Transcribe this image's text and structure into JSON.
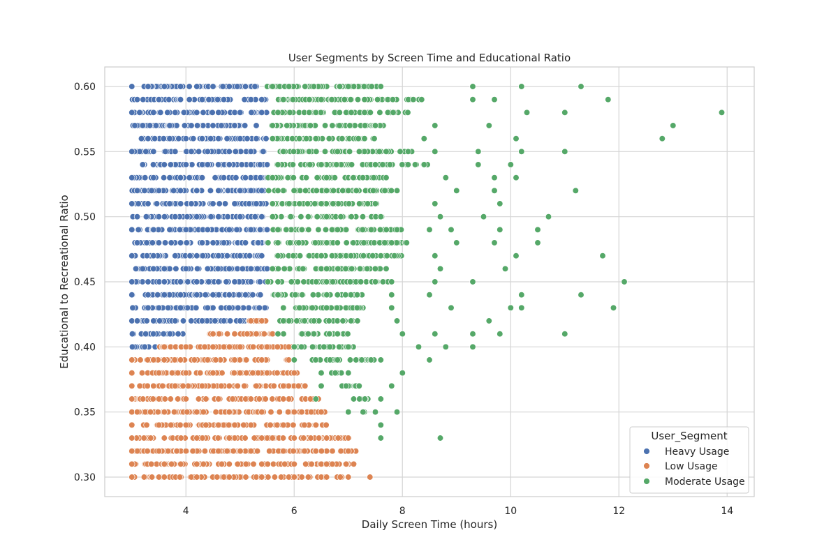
{
  "chart_data": {
    "type": "scatter",
    "title": "User Segments by Screen Time and Educational Ratio",
    "xlabel": "Daily Screen Time (hours)",
    "ylabel": "Educational to Recreational Ratio",
    "xlim": [
      2.5,
      14.5
    ],
    "ylim": [
      0.285,
      0.615
    ],
    "xticks": [
      4,
      6,
      8,
      10,
      12,
      14
    ],
    "yticks": [
      0.3,
      0.35,
      0.4,
      0.45,
      0.5,
      0.55,
      0.6
    ],
    "ytick_labels": [
      "0.30",
      "0.35",
      "0.40",
      "0.45",
      "0.50",
      "0.55",
      "0.60"
    ],
    "grid": true,
    "legend": {
      "title": "User_Segment",
      "placement": "lower-right"
    },
    "series": [
      {
        "name": "Heavy Usage",
        "color": "#4c72b0",
        "x": [
          3.0,
          3.3,
          3.6,
          3.9,
          4.2,
          4.5,
          4.8,
          5.1,
          5.4,
          3.1,
          3.5,
          3.9,
          4.3,
          4.7,
          5.2,
          3.0,
          3.4,
          3.8,
          4.2,
          4.6,
          5.0,
          5.4,
          3.2,
          3.7,
          4.1,
          4.5,
          4.9,
          5.3,
          3.3,
          3.7,
          4.0,
          4.3,
          4.6,
          5.0,
          5.3,
          3.0,
          3.4,
          3.8,
          4.1,
          4.4,
          4.8,
          5.2,
          3.2,
          3.6,
          4.0,
          4.4,
          4.8,
          5.2,
          5.5,
          3.0,
          3.4,
          3.9,
          4.3,
          4.7,
          5.1,
          5.5,
          3.1,
          3.5,
          3.9,
          4.2,
          4.6,
          5.0,
          5.4,
          3.0,
          3.3,
          3.7,
          4.1,
          4.5,
          4.9,
          5.3,
          3.1,
          3.5,
          3.8,
          4.2,
          4.6,
          5.0,
          5.4,
          3.0,
          3.4,
          3.7,
          4.0,
          4.4,
          4.8,
          5.2,
          5.5,
          3.1,
          3.5,
          3.9,
          4.3,
          4.7,
          5.1,
          5.5,
          3.0,
          3.4,
          3.8,
          4.2,
          4.6,
          5.0,
          5.4,
          3.2,
          3.6,
          4.0,
          4.4,
          4.8,
          5.2,
          5.5,
          3.0,
          3.3,
          3.6,
          3.9,
          4.2,
          4.6,
          4.9,
          5.2,
          3.0,
          3.3,
          3.6,
          3.9,
          4.2,
          4.5,
          4.8,
          5.1,
          3.3,
          3.5,
          3.9,
          4.4,
          4.8,
          3.0,
          3.1,
          3.4,
          3.8,
          4.3,
          4.7,
          5.0,
          5.3
        ],
        "y": [
          0.6,
          0.6,
          0.6,
          0.6,
          0.6,
          0.6,
          0.6,
          0.6,
          0.59,
          0.59,
          0.59,
          0.59,
          0.59,
          0.59,
          0.59,
          0.58,
          0.58,
          0.58,
          0.58,
          0.58,
          0.58,
          0.58,
          0.57,
          0.57,
          0.57,
          0.57,
          0.57,
          0.57,
          0.56,
          0.56,
          0.56,
          0.56,
          0.56,
          0.56,
          0.56,
          0.55,
          0.55,
          0.55,
          0.55,
          0.55,
          0.55,
          0.55,
          0.54,
          0.54,
          0.54,
          0.54,
          0.54,
          0.54,
          0.54,
          0.53,
          0.53,
          0.53,
          0.53,
          0.53,
          0.53,
          0.53,
          0.52,
          0.52,
          0.52,
          0.52,
          0.52,
          0.52,
          0.52,
          0.51,
          0.51,
          0.51,
          0.51,
          0.51,
          0.51,
          0.51,
          0.5,
          0.5,
          0.5,
          0.5,
          0.5,
          0.5,
          0.5,
          0.49,
          0.49,
          0.49,
          0.49,
          0.49,
          0.49,
          0.49,
          0.49,
          0.48,
          0.48,
          0.48,
          0.48,
          0.48,
          0.48,
          0.48,
          0.47,
          0.47,
          0.47,
          0.47,
          0.47,
          0.47,
          0.47,
          0.46,
          0.46,
          0.46,
          0.46,
          0.46,
          0.46,
          0.46,
          0.45,
          0.45,
          0.45,
          0.45,
          0.45,
          0.45,
          0.45,
          0.45,
          0.44,
          0.44,
          0.44,
          0.44,
          0.44,
          0.44,
          0.44,
          0.44,
          0.43,
          0.43,
          0.43,
          0.43,
          0.43,
          0.42,
          0.42,
          0.42,
          0.42,
          0.42,
          0.42,
          0.42,
          0.41
        ],
        "bands": [
          [
            0.6,
            3.2,
            5.4
          ],
          [
            0.59,
            3.0,
            5.5
          ],
          [
            0.58,
            3.0,
            5.5
          ],
          [
            0.57,
            3.0,
            5.5
          ],
          [
            0.56,
            3.1,
            5.5
          ],
          [
            0.55,
            3.0,
            5.5
          ],
          [
            0.54,
            3.1,
            5.5
          ],
          [
            0.53,
            3.0,
            5.5
          ],
          [
            0.52,
            3.0,
            5.5
          ],
          [
            0.51,
            3.0,
            5.5
          ],
          [
            0.5,
            3.0,
            5.5
          ],
          [
            0.49,
            3.0,
            5.5
          ],
          [
            0.48,
            3.0,
            5.5
          ],
          [
            0.47,
            3.0,
            5.5
          ],
          [
            0.46,
            3.0,
            5.5
          ],
          [
            0.45,
            3.0,
            5.5
          ],
          [
            0.44,
            3.0,
            5.5
          ],
          [
            0.43,
            3.0,
            5.5
          ],
          [
            0.42,
            3.0,
            5.1
          ],
          [
            0.41,
            3.0,
            4.0
          ],
          [
            0.4,
            3.0,
            3.5
          ]
        ]
      },
      {
        "name": "Low Usage",
        "color": "#dd8452",
        "x": [
          5.2,
          5.4,
          4.5,
          4.9,
          5.3,
          5.6,
          3.6,
          4.0,
          4.5,
          5.0,
          5.5,
          5.9,
          3.0,
          3.4,
          3.9,
          4.4,
          4.9,
          5.4,
          5.9,
          3.0,
          3.5,
          4.0,
          4.5,
          5.0,
          5.5,
          6.0,
          3.0,
          3.4,
          3.8,
          4.3,
          4.8,
          5.3,
          5.8,
          6.2,
          3.0,
          3.5,
          4.0,
          4.6,
          5.2,
          5.8,
          6.3,
          3.1,
          3.6,
          4.2,
          4.8,
          5.4,
          6.0,
          6.5,
          3.0,
          3.5,
          4.0,
          4.6,
          5.2,
          5.8,
          6.4,
          3.0,
          3.6,
          4.2,
          4.8,
          5.4,
          6.0,
          6.6,
          7.0,
          3.0,
          3.5,
          4.0,
          4.6,
          5.2,
          5.8,
          6.4,
          7.0,
          3.0,
          3.6,
          4.2,
          4.8,
          5.4,
          6.0,
          6.6,
          7.1,
          3.0,
          3.5,
          4.1,
          4.7,
          5.3,
          5.9,
          6.5,
          7.0,
          7.4,
          3.0,
          3.6,
          4.2,
          4.8,
          5.4,
          6.0,
          6.6,
          7.4
        ],
        "y": [
          0.42,
          0.42,
          0.41,
          0.41,
          0.41,
          0.41,
          0.4,
          0.4,
          0.4,
          0.4,
          0.4,
          0.4,
          0.39,
          0.39,
          0.39,
          0.39,
          0.39,
          0.39,
          0.39,
          0.38,
          0.38,
          0.38,
          0.38,
          0.38,
          0.38,
          0.38,
          0.37,
          0.37,
          0.37,
          0.37,
          0.37,
          0.37,
          0.37,
          0.37,
          0.36,
          0.36,
          0.36,
          0.36,
          0.36,
          0.36,
          0.36,
          0.35,
          0.35,
          0.35,
          0.35,
          0.35,
          0.35,
          0.35,
          0.34,
          0.34,
          0.34,
          0.34,
          0.34,
          0.34,
          0.34,
          0.33,
          0.33,
          0.33,
          0.33,
          0.33,
          0.33,
          0.33,
          0.33,
          0.32,
          0.32,
          0.32,
          0.32,
          0.32,
          0.32,
          0.32,
          0.32,
          0.31,
          0.31,
          0.31,
          0.31,
          0.31,
          0.31,
          0.31,
          0.31,
          0.3,
          0.3,
          0.3,
          0.3,
          0.3,
          0.3,
          0.3,
          0.3,
          0.3,
          0.3,
          0.3,
          0.3,
          0.3,
          0.3,
          0.3,
          0.3,
          0.3
        ],
        "bands": [
          [
            0.42,
            5.1,
            5.5
          ],
          [
            0.41,
            4.4,
            5.6
          ],
          [
            0.4,
            3.5,
            6.0
          ],
          [
            0.39,
            3.0,
            6.0
          ],
          [
            0.38,
            3.0,
            6.1
          ],
          [
            0.37,
            3.0,
            6.3
          ],
          [
            0.36,
            3.0,
            6.5
          ],
          [
            0.35,
            3.0,
            6.6
          ],
          [
            0.34,
            3.0,
            6.6
          ],
          [
            0.33,
            3.0,
            7.1
          ],
          [
            0.32,
            3.0,
            7.2
          ],
          [
            0.31,
            3.0,
            7.1
          ],
          [
            0.3,
            3.0,
            7.0
          ]
        ]
      },
      {
        "name": "Moderate Usage",
        "color": "#55a868",
        "x": [
          5.6,
          6.2,
          7.0,
          7.6,
          9.3,
          10.2,
          11.3,
          5.8,
          6.5,
          7.3,
          8.2,
          9.3,
          9.7,
          11.8,
          5.7,
          6.4,
          7.3,
          8.1,
          10.3,
          11.0,
          13.9,
          5.6,
          6.3,
          7.5,
          8.6,
          9.6,
          13.0,
          5.6,
          6.4,
          7.3,
          8.4,
          10.1,
          12.8,
          5.8,
          6.8,
          7.7,
          8.6,
          9.4,
          10.2,
          11.0,
          5.7,
          6.5,
          7.5,
          8.4,
          9.4,
          10.0,
          10.1,
          5.6,
          6.6,
          7.7,
          8.8,
          9.7,
          10.1,
          5.7,
          6.6,
          7.9,
          9.0,
          9.7,
          11.2,
          11.2,
          5.6,
          6.5,
          7.5,
          8.6,
          9.8,
          5.6,
          6.6,
          7.6,
          8.7,
          9.5,
          10.7,
          5.7,
          6.7,
          7.9,
          8.5,
          8.9,
          9.8,
          10.5,
          5.7,
          6.8,
          7.8,
          9.0,
          9.7,
          10.5,
          5.7,
          6.7,
          7.6,
          8.6,
          10.1,
          11.7,
          5.6,
          6.6,
          7.7,
          8.7,
          9.9,
          5.7,
          6.6,
          7.8,
          8.6,
          9.3,
          12.1,
          5.7,
          6.8,
          7.8,
          8.5,
          10.2,
          11.3,
          5.8,
          6.6,
          7.8,
          8.9,
          10.0,
          10.2,
          11.9,
          5.8,
          6.9,
          7.9,
          9.6,
          5.7,
          6.8,
          8.0,
          8.6,
          9.3,
          9.8,
          11.0,
          6.0,
          7.0,
          8.3,
          8.8,
          9.3,
          6.0,
          6.8,
          7.6,
          8.5,
          6.5,
          7.0,
          8.0,
          6.5,
          7.2,
          7.8,
          6.4,
          7.1,
          7.6,
          7.6,
          7.0,
          7.5,
          7.9,
          7.6,
          7.6,
          8.7
        ],
        "y": [
          0.6,
          0.6,
          0.6,
          0.6,
          0.6,
          0.6,
          0.6,
          0.59,
          0.59,
          0.59,
          0.59,
          0.59,
          0.59,
          0.59,
          0.58,
          0.58,
          0.58,
          0.58,
          0.58,
          0.58,
          0.58,
          0.57,
          0.57,
          0.57,
          0.57,
          0.57,
          0.57,
          0.56,
          0.56,
          0.56,
          0.56,
          0.56,
          0.56,
          0.55,
          0.55,
          0.55,
          0.55,
          0.55,
          0.55,
          0.55,
          0.54,
          0.54,
          0.54,
          0.54,
          0.54,
          0.54,
          0.53,
          0.53,
          0.53,
          0.53,
          0.53,
          0.53,
          0.53,
          0.52,
          0.52,
          0.52,
          0.52,
          0.52,
          0.52,
          0.52,
          0.51,
          0.51,
          0.51,
          0.51,
          0.51,
          0.5,
          0.5,
          0.5,
          0.5,
          0.5,
          0.5,
          0.49,
          0.49,
          0.49,
          0.49,
          0.49,
          0.49,
          0.49,
          0.48,
          0.48,
          0.48,
          0.48,
          0.48,
          0.48,
          0.47,
          0.47,
          0.47,
          0.47,
          0.47,
          0.47,
          0.46,
          0.46,
          0.46,
          0.46,
          0.46,
          0.45,
          0.45,
          0.45,
          0.45,
          0.45,
          0.45,
          0.44,
          0.44,
          0.44,
          0.44,
          0.44,
          0.44,
          0.43,
          0.43,
          0.43,
          0.43,
          0.43,
          0.43,
          0.43,
          0.42,
          0.42,
          0.42,
          0.42,
          0.41,
          0.41,
          0.41,
          0.41,
          0.41,
          0.41,
          0.41,
          0.4,
          0.4,
          0.4,
          0.4,
          0.4,
          0.39,
          0.39,
          0.39,
          0.39,
          0.38,
          0.38,
          0.38,
          0.37,
          0.37,
          0.37,
          0.36,
          0.36,
          0.36,
          0.36,
          0.35,
          0.35,
          0.35,
          0.34,
          0.33,
          0.33
        ],
        "bands": [
          [
            0.6,
            5.5,
            7.6
          ],
          [
            0.59,
            5.6,
            8.4
          ],
          [
            0.58,
            5.6,
            8.2
          ],
          [
            0.57,
            5.5,
            7.7
          ],
          [
            0.56,
            5.6,
            7.5
          ],
          [
            0.55,
            5.7,
            8.2
          ],
          [
            0.54,
            5.6,
            8.5
          ],
          [
            0.53,
            5.5,
            7.7
          ],
          [
            0.52,
            5.5,
            7.8
          ],
          [
            0.51,
            5.6,
            7.6
          ],
          [
            0.5,
            5.6,
            7.8
          ],
          [
            0.49,
            5.6,
            8.0
          ],
          [
            0.48,
            5.5,
            8.1
          ],
          [
            0.47,
            5.5,
            8.0
          ],
          [
            0.46,
            5.5,
            7.6
          ],
          [
            0.45,
            5.5,
            7.8
          ],
          [
            0.44,
            5.6,
            7.3
          ],
          [
            0.43,
            5.7,
            7.3
          ],
          [
            0.42,
            5.6,
            7.2
          ],
          [
            0.41,
            5.8,
            7.0
          ],
          [
            0.4,
            6.0,
            7.1
          ],
          [
            0.39,
            6.3,
            7.5
          ],
          [
            0.38,
            6.5,
            6.9
          ],
          [
            0.37,
            6.8,
            7.2
          ],
          [
            0.36,
            7.0,
            7.4
          ],
          [
            0.35,
            7.2,
            7.3
          ]
        ]
      }
    ]
  }
}
